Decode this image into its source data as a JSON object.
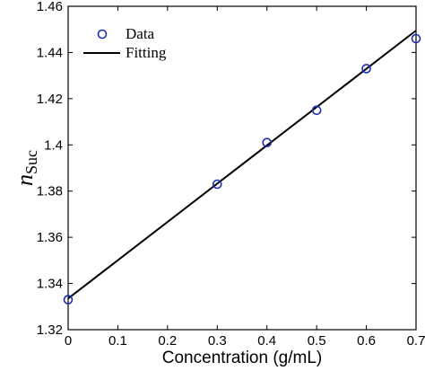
{
  "chart_data": {
    "type": "scatter",
    "xlabel": "Concentration (g/mL)",
    "ylabel": "n",
    "ylabel_subscript": "Suc",
    "xlim": [
      0,
      0.7
    ],
    "ylim": [
      1.32,
      1.46
    ],
    "xticks": [
      "0",
      "0.1",
      "0.2",
      "0.3",
      "0.4",
      "0.5",
      "0.6",
      "0.7"
    ],
    "yticks": [
      "1.32",
      "1.34",
      "1.36",
      "1.38",
      "1.4",
      "1.42",
      "1.44",
      "1.46"
    ],
    "grid": false,
    "legend_position": "top-left",
    "series": [
      {
        "name": "Data",
        "kind": "markers",
        "color": "#1a2fb0",
        "marker": "circle",
        "x": [
          0,
          0.3,
          0.4,
          0.5,
          0.6,
          0.7
        ],
        "y": [
          1.333,
          1.383,
          1.401,
          1.415,
          1.433,
          1.446
        ]
      },
      {
        "name": "Fitting",
        "kind": "line",
        "color": "#000000",
        "x": [
          0,
          0.7
        ],
        "y": [
          1.3335,
          1.4495
        ]
      }
    ]
  }
}
